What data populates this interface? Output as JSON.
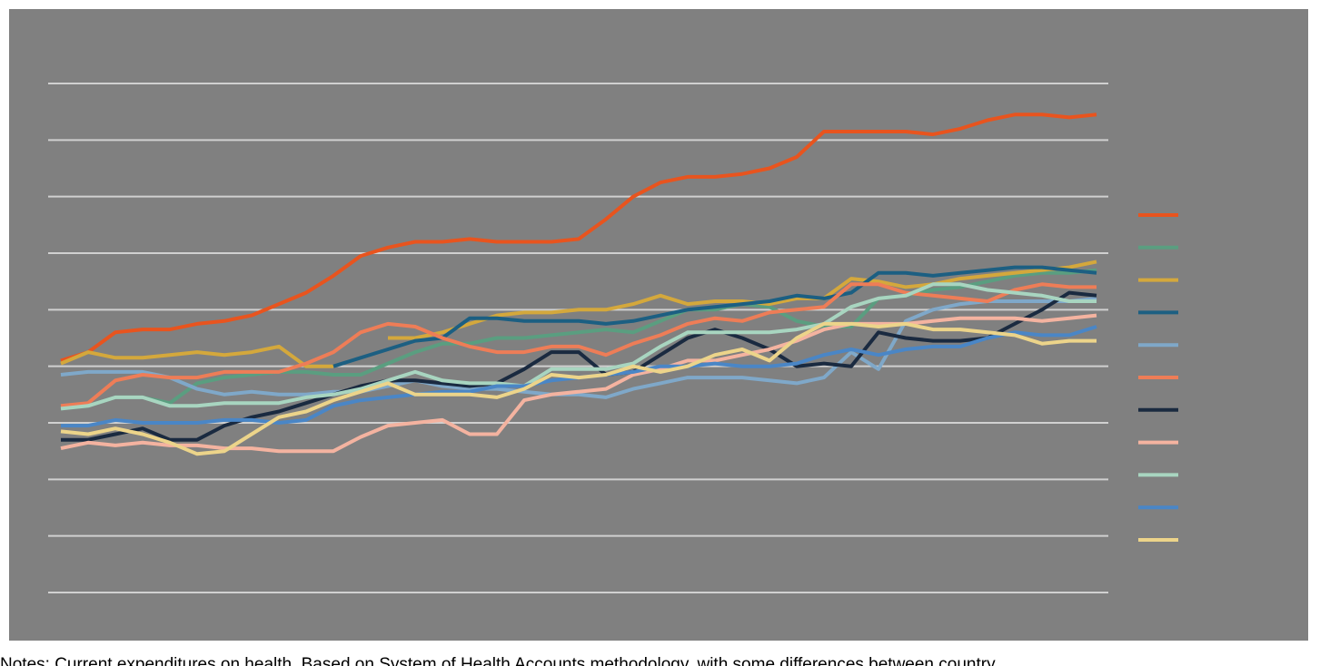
{
  "chart_data": {
    "type": "line",
    "notes": "Notes: Current expenditures on health. Based on System of Health Accounts methodology, with some differences between country",
    "categories": [
      null,
      null,
      null,
      null,
      null,
      null,
      null,
      null,
      null,
      null,
      null,
      null,
      null,
      null,
      null,
      null,
      null,
      null,
      null,
      null,
      null,
      null,
      null,
      null,
      null,
      null,
      null,
      null,
      null,
      null,
      null,
      null,
      null,
      null,
      null,
      null,
      null,
      null,
      null
    ],
    "ylim": [
      0,
      18
    ],
    "yticks": [
      0,
      2,
      4,
      6,
      8,
      10,
      12,
      14,
      16,
      18
    ],
    "grid": true,
    "legend": "right",
    "series": [
      {
        "color": "#e8541e",
        "values": [
          8.2,
          8.5,
          9.2,
          9.3,
          9.3,
          9.5,
          9.6,
          9.8,
          10.2,
          10.6,
          11.2,
          11.9,
          12.2,
          12.4,
          12.4,
          12.5,
          12.4,
          12.4,
          12.4,
          12.5,
          13.2,
          14.0,
          14.5,
          14.7,
          14.7,
          14.8,
          15.0,
          15.4,
          16.3,
          16.3,
          16.3,
          16.3,
          16.2,
          16.4,
          16.7,
          16.9,
          16.9,
          16.8,
          16.9
        ]
      },
      {
        "color": "#5a9e80",
        "values": [
          6.5,
          6.6,
          6.9,
          6.9,
          6.7,
          7.4,
          7.6,
          7.7,
          7.8,
          7.8,
          7.7,
          7.7,
          8.1,
          8.5,
          8.8,
          8.8,
          9.0,
          9.0,
          9.1,
          9.2,
          9.3,
          9.2,
          9.6,
          10.0,
          10.0,
          10.2,
          10.1,
          9.6,
          9.4,
          9.4,
          10.4,
          10.5,
          10.7,
          10.8,
          11.0,
          11.2,
          11.3,
          11.3,
          11.4
        ]
      },
      {
        "color": "#d4a83c",
        "values": [
          8.1,
          8.5,
          8.3,
          8.3,
          8.4,
          8.5,
          8.4,
          8.5,
          8.7,
          8.0,
          8.0,
          null,
          9.0,
          9.0,
          9.2,
          9.5,
          9.8,
          9.9,
          9.9,
          10.0,
          10.0,
          10.2,
          10.5,
          10.2,
          10.3,
          10.3,
          10.2,
          10.4,
          10.4,
          11.1,
          11.0,
          10.8,
          10.9,
          11.1,
          11.2,
          11.3,
          11.4,
          11.5,
          11.7
        ]
      },
      {
        "color": "#1c5f82",
        "values": [
          null,
          null,
          null,
          null,
          null,
          null,
          null,
          null,
          null,
          null,
          8.0,
          8.3,
          8.6,
          8.9,
          9.0,
          9.7,
          9.7,
          9.6,
          9.6,
          9.6,
          9.5,
          9.6,
          9.8,
          10.0,
          10.1,
          10.2,
          10.3,
          10.5,
          10.4,
          10.6,
          11.3,
          11.3,
          11.2,
          11.3,
          11.4,
          11.5,
          11.5,
          11.4,
          11.3
        ]
      },
      {
        "color": "#7fa8c9",
        "values": [
          7.7,
          7.8,
          7.8,
          7.8,
          7.6,
          7.2,
          7.0,
          7.1,
          7.0,
          7.0,
          7.1,
          7.1,
          7.3,
          7.5,
          7.3,
          7.2,
          7.2,
          7.1,
          7.0,
          7.0,
          6.9,
          7.2,
          7.4,
          7.6,
          7.6,
          7.6,
          7.5,
          7.4,
          7.6,
          8.5,
          7.9,
          9.6,
          10.0,
          10.2,
          10.3,
          10.3,
          10.3,
          10.3,
          10.4
        ]
      },
      {
        "color": "#ee7d57",
        "values": [
          6.6,
          6.7,
          7.5,
          7.7,
          7.6,
          7.6,
          7.8,
          7.8,
          7.8,
          8.1,
          8.5,
          9.2,
          9.5,
          9.4,
          9.0,
          8.7,
          8.5,
          8.5,
          8.7,
          8.7,
          8.4,
          8.8,
          9.1,
          9.5,
          9.7,
          9.6,
          9.9,
          10.0,
          10.1,
          10.9,
          10.9,
          10.6,
          10.5,
          10.4,
          10.3,
          10.7,
          10.9,
          10.8,
          10.8
        ]
      },
      {
        "color": "#1a2a40",
        "values": [
          5.4,
          5.4,
          5.6,
          5.8,
          5.4,
          5.4,
          5.9,
          6.2,
          6.4,
          6.7,
          7.0,
          7.3,
          7.5,
          7.5,
          7.4,
          7.3,
          7.4,
          7.9,
          8.5,
          8.5,
          7.7,
          7.8,
          8.4,
          9.0,
          9.3,
          9.0,
          8.6,
          8.0,
          8.1,
          8.0,
          9.2,
          9.0,
          8.9,
          8.9,
          9.0,
          9.5,
          10.0,
          10.6,
          10.5
        ]
      },
      {
        "color": "#f4b3a0",
        "values": [
          5.1,
          5.3,
          5.2,
          5.3,
          5.2,
          5.2,
          5.1,
          5.1,
          5.0,
          5.0,
          5.0,
          5.5,
          5.9,
          6.0,
          6.1,
          5.6,
          5.6,
          6.8,
          7.0,
          7.1,
          7.2,
          7.7,
          7.9,
          8.2,
          8.2,
          8.4,
          8.6,
          8.9,
          9.3,
          9.5,
          9.5,
          9.5,
          9.6,
          9.7,
          9.7,
          9.7,
          9.6,
          9.7,
          9.8
        ]
      },
      {
        "color": "#a8d5c0",
        "values": [
          6.5,
          6.6,
          6.9,
          6.9,
          6.6,
          6.6,
          6.7,
          6.7,
          6.7,
          6.9,
          7.0,
          7.2,
          7.5,
          7.8,
          7.5,
          7.4,
          7.4,
          7.3,
          7.9,
          7.9,
          7.9,
          8.1,
          8.7,
          9.2,
          9.2,
          9.2,
          9.2,
          9.3,
          9.5,
          10.1,
          10.4,
          10.5,
          10.9,
          10.9,
          10.7,
          10.6,
          10.5,
          10.3,
          10.3
        ]
      },
      {
        "color": "#4a86c6",
        "values": [
          5.9,
          5.9,
          6.1,
          6.0,
          6.0,
          6.0,
          6.1,
          6.1,
          6.0,
          6.1,
          6.6,
          6.8,
          6.9,
          7.0,
          7.1,
          7.1,
          7.3,
          7.3,
          7.5,
          7.6,
          7.7,
          7.8,
          8.0,
          8.0,
          8.1,
          8.0,
          8.0,
          8.1,
          8.4,
          8.6,
          8.4,
          8.6,
          8.7,
          8.7,
          9.0,
          9.2,
          9.1,
          9.1,
          9.4
        ]
      },
      {
        "color": "#ecd48a",
        "values": [
          5.7,
          5.6,
          5.8,
          5.6,
          5.3,
          4.9,
          5.0,
          5.6,
          6.2,
          6.4,
          6.8,
          7.1,
          7.4,
          7.0,
          7.0,
          7.0,
          6.9,
          7.2,
          7.7,
          7.6,
          7.7,
          8.0,
          7.8,
          8.0,
          8.4,
          8.6,
          8.2,
          9.0,
          9.5,
          9.5,
          9.4,
          9.5,
          9.3,
          9.3,
          9.2,
          9.1,
          8.8,
          8.9,
          8.9
        ]
      }
    ]
  }
}
